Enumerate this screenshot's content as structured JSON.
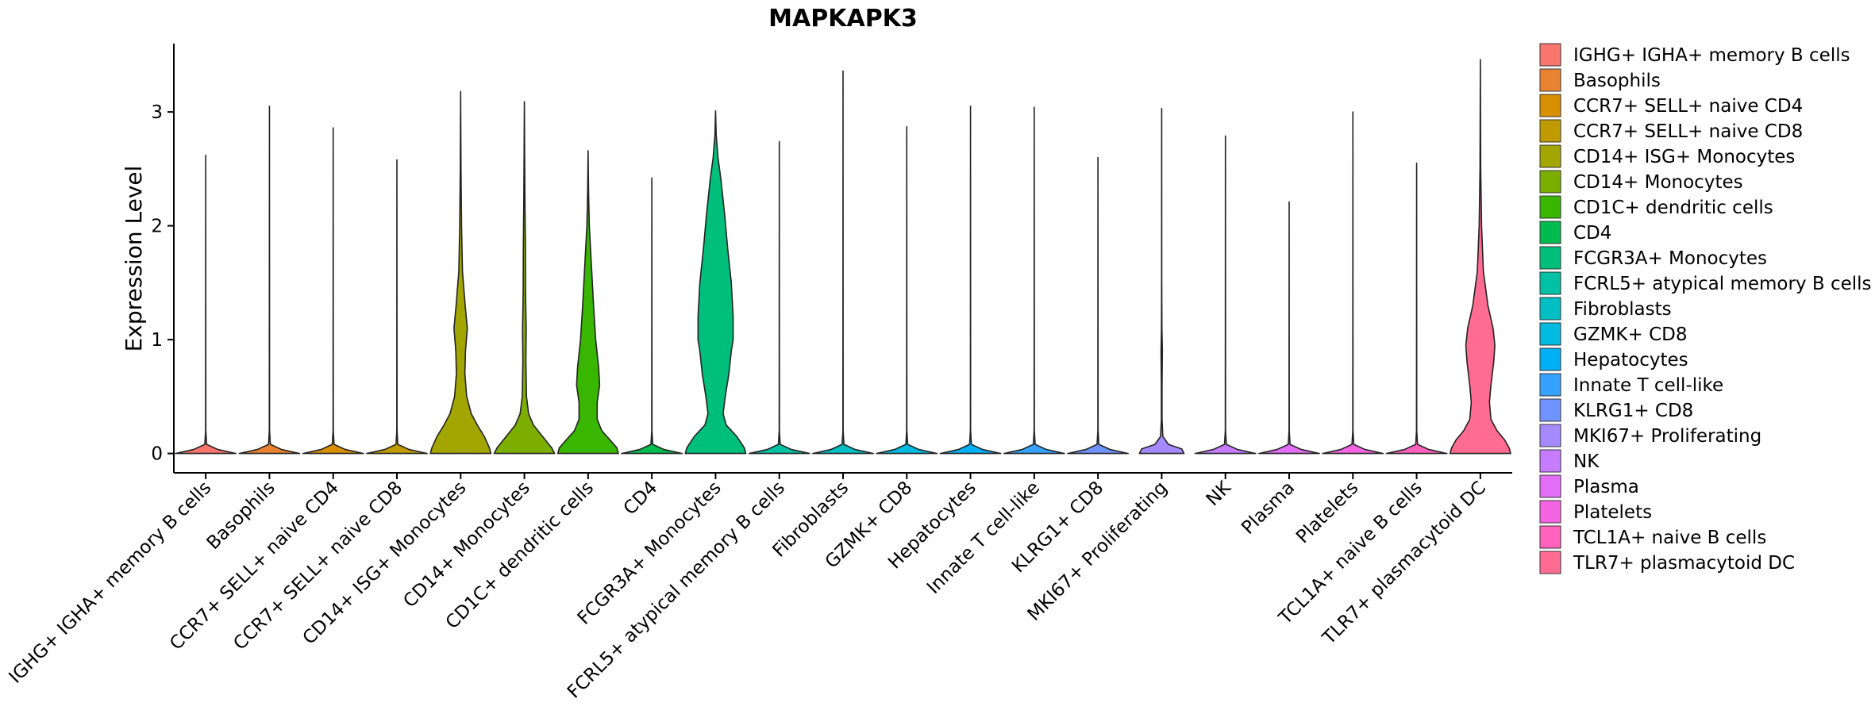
{
  "chart_data": {
    "type": "violin",
    "title": "MAPKAPK3",
    "xlabel": "",
    "ylabel": "Expression Level",
    "ylim": [
      -0.17,
      3.6
    ],
    "yticks": [
      0,
      1,
      2,
      3
    ],
    "grid": false,
    "legend_position": "right",
    "categories": [
      " IGHG+ IGHA+ memory B cells",
      "Basophils",
      "CCR7+ SELL+ naive CD4",
      "CCR7+ SELL+ naive CD8",
      "CD14+ ISG+ Monocytes",
      "CD14+ Monocytes",
      "CD1C+ dendritic cells",
      "CD4",
      "FCGR3A+ Monocytes",
      "FCRL5+ atypical memory B cells",
      "Fibroblasts",
      "GZMK+ CD8",
      "Hepatocytes",
      "Innate T cell-like",
      "KLRG1+ CD8",
      "MKI67+ Proliferating",
      "NK",
      "Plasma",
      "Platelets",
      "TCL1A+ naive B cells",
      "TLR7+ plasmacytoid DC"
    ],
    "colors": [
      "#F8766D",
      "#EA8331",
      "#D89000",
      "#C09B00",
      "#A3A500",
      "#7CAE00",
      "#39B600",
      "#00BB4E",
      "#00BF7D",
      "#00C1A3",
      "#00BFC4",
      "#00BAE0",
      "#00B0F6",
      "#35A2FF",
      "#6F94FF",
      "#A58AFF",
      "#C77CFF",
      "#E26EF7",
      "#F564E3",
      "#FF62BC",
      "#FF6C91"
    ],
    "max_values": [
      2.62,
      3.05,
      2.86,
      2.58,
      3.18,
      3.09,
      2.66,
      2.42,
      3.01,
      2.74,
      3.36,
      2.87,
      3.05,
      3.04,
      2.6,
      3.03,
      2.79,
      2.21,
      3.0,
      2.55,
      3.46
    ],
    "density_profiles": [
      [
        [
          0,
          1
        ]
      ],
      [
        [
          0,
          1
        ]
      ],
      [
        [
          0,
          1
        ]
      ],
      [
        [
          0,
          1
        ]
      ],
      [
        [
          0,
          1
        ],
        [
          0.05,
          0.95
        ],
        [
          0.15,
          0.78
        ],
        [
          0.25,
          0.55
        ],
        [
          0.35,
          0.35
        ],
        [
          0.5,
          0.2
        ],
        [
          0.7,
          0.14
        ],
        [
          0.9,
          0.16
        ],
        [
          1.1,
          0.22
        ],
        [
          1.3,
          0.15
        ],
        [
          1.6,
          0.06
        ],
        [
          2.0,
          0.03
        ],
        [
          2.5,
          0.012
        ],
        [
          3.18,
          0
        ]
      ],
      [
        [
          0,
          1
        ],
        [
          0.05,
          0.9
        ],
        [
          0.15,
          0.6
        ],
        [
          0.25,
          0.3
        ],
        [
          0.35,
          0.14
        ],
        [
          0.5,
          0.07
        ],
        [
          0.8,
          0.05
        ],
        [
          1.1,
          0.06
        ],
        [
          1.4,
          0.04
        ],
        [
          1.8,
          0.035
        ],
        [
          2.2,
          0.02
        ],
        [
          2.6,
          0.01
        ],
        [
          3.09,
          0
        ]
      ],
      [
        [
          0,
          1
        ],
        [
          0.05,
          0.95
        ],
        [
          0.12,
          0.72
        ],
        [
          0.2,
          0.45
        ],
        [
          0.3,
          0.3
        ],
        [
          0.45,
          0.3
        ],
        [
          0.6,
          0.38
        ],
        [
          0.75,
          0.35
        ],
        [
          1.0,
          0.25
        ],
        [
          1.3,
          0.18
        ],
        [
          1.6,
          0.12
        ],
        [
          2.0,
          0.04
        ],
        [
          2.3,
          0.015
        ],
        [
          2.66,
          0
        ]
      ],
      [
        [
          0,
          1
        ]
      ],
      [
        [
          0,
          1
        ],
        [
          0.05,
          0.95
        ],
        [
          0.15,
          0.7
        ],
        [
          0.25,
          0.35
        ],
        [
          0.35,
          0.25
        ],
        [
          0.5,
          0.32
        ],
        [
          0.7,
          0.44
        ],
        [
          0.9,
          0.52
        ],
        [
          1.0,
          0.58
        ],
        [
          1.2,
          0.58
        ],
        [
          1.5,
          0.52
        ],
        [
          1.8,
          0.4
        ],
        [
          2.1,
          0.3
        ],
        [
          2.4,
          0.18
        ],
        [
          2.6,
          0.08
        ],
        [
          2.8,
          0.02
        ],
        [
          3.01,
          0
        ]
      ],
      [
        [
          0,
          1
        ]
      ],
      [
        [
          0,
          1
        ]
      ],
      [
        [
          0,
          1
        ]
      ],
      [
        [
          0,
          1
        ]
      ],
      [
        [
          0,
          1
        ]
      ],
      [
        [
          0,
          1
        ]
      ],
      [
        [
          0,
          1
        ],
        [
          0.04,
          0.9
        ],
        [
          0.08,
          0.3
        ],
        [
          0.15,
          0.05
        ],
        [
          0.3,
          0.015
        ],
        [
          0.6,
          0.015
        ],
        [
          0.9,
          0.03
        ],
        [
          1.1,
          0.01
        ],
        [
          1.5,
          0.003
        ],
        [
          3.03,
          0
        ]
      ],
      [
        [
          0,
          1
        ]
      ],
      [
        [
          0,
          1
        ]
      ],
      [
        [
          0,
          1
        ]
      ],
      [
        [
          0,
          1
        ]
      ],
      [
        [
          0,
          1
        ],
        [
          0.05,
          0.95
        ],
        [
          0.12,
          0.8
        ],
        [
          0.2,
          0.55
        ],
        [
          0.3,
          0.35
        ],
        [
          0.45,
          0.3
        ],
        [
          0.6,
          0.35
        ],
        [
          0.8,
          0.44
        ],
        [
          0.95,
          0.48
        ],
        [
          1.1,
          0.42
        ],
        [
          1.3,
          0.25
        ],
        [
          1.6,
          0.1
        ],
        [
          2.0,
          0.04
        ],
        [
          2.5,
          0.012
        ],
        [
          3.46,
          0
        ]
      ]
    ],
    "violin_peak_halfwidth": [
      0.95,
      0.95,
      0.95,
      0.95,
      0.95,
      0.95,
      0.95,
      0.95,
      0.95,
      0.95,
      0.95,
      0.95,
      0.95,
      0.95,
      0.95,
      0.7,
      0.95,
      0.95,
      0.95,
      0.95,
      0.95
    ]
  }
}
